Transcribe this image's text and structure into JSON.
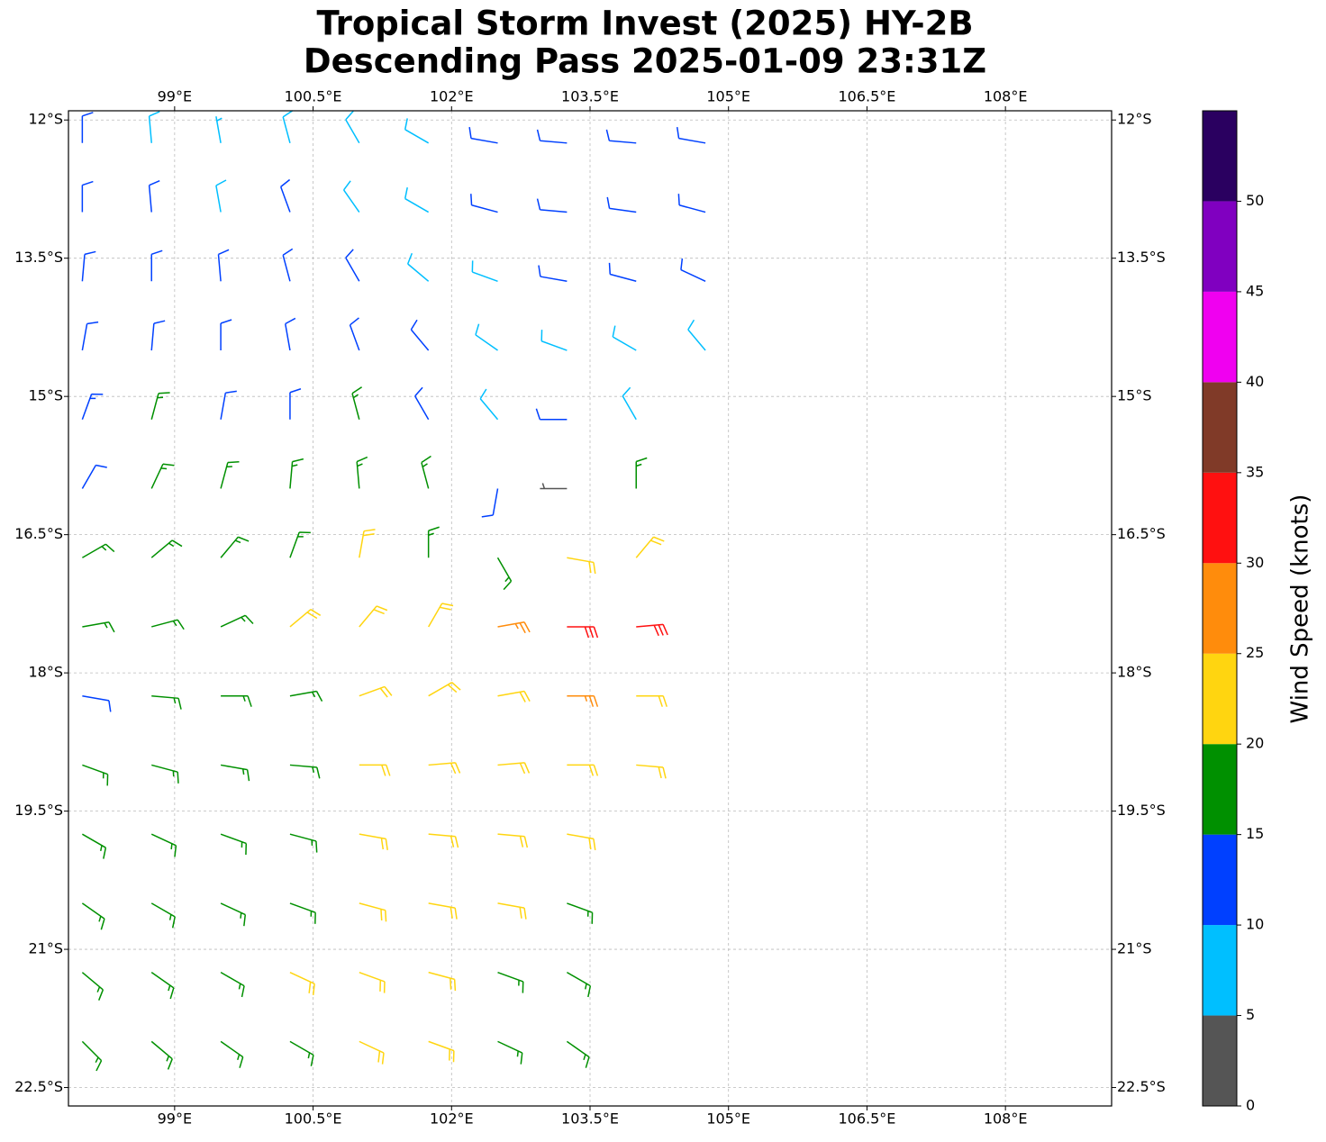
{
  "title": "Tropical Storm Invest (2025) HY-2B",
  "subtitle": "Descending Pass 2025-01-09 23:31Z",
  "map": {
    "xlim": [
      97.85,
      109.15
    ],
    "ylim": [
      -22.7,
      -11.9
    ],
    "grid": true,
    "xticks": [
      {
        "value": 99,
        "label": "99°E"
      },
      {
        "value": 100.5,
        "label": "100.5°E"
      },
      {
        "value": 102,
        "label": "102°E"
      },
      {
        "value": 103.5,
        "label": "103.5°E"
      },
      {
        "value": 105,
        "label": "105°E"
      },
      {
        "value": 106.5,
        "label": "106.5°E"
      },
      {
        "value": 108,
        "label": "108°E"
      }
    ],
    "yticks": [
      {
        "value": -12,
        "label": "12°S"
      },
      {
        "value": -13.5,
        "label": "13.5°S"
      },
      {
        "value": -15,
        "label": "15°S"
      },
      {
        "value": -16.5,
        "label": "16.5°S"
      },
      {
        "value": -18,
        "label": "18°S"
      },
      {
        "value": -19.5,
        "label": "19.5°S"
      },
      {
        "value": -21,
        "label": "21°S"
      },
      {
        "value": -22.5,
        "label": "22.5°S"
      }
    ]
  },
  "barbs": {
    "rows": [
      {
        "lat": -12.25,
        "lon": [
          98,
          98.75,
          99.5,
          100.25,
          101,
          101.75,
          102.5,
          103.25,
          104,
          104.75
        ],
        "speed": [
          12,
          8,
          7,
          8,
          8,
          8,
          12,
          12,
          12,
          12
        ],
        "dir": [
          0,
          355,
          350,
          345,
          330,
          300,
          280,
          275,
          275,
          280
        ]
      },
      {
        "lat": -13.0,
        "lon": [
          98,
          98.75,
          99.5,
          100.25,
          101,
          101.75,
          102.5,
          103.25,
          104,
          104.75
        ],
        "speed": [
          12,
          12,
          8,
          12,
          8,
          8,
          12,
          12,
          12,
          12
        ],
        "dir": [
          0,
          355,
          350,
          340,
          325,
          300,
          285,
          275,
          278,
          285
        ]
      },
      {
        "lat": -13.75,
        "lon": [
          98,
          98.75,
          99.5,
          100.25,
          101,
          101.75,
          102.5,
          103.25,
          104,
          104.75
        ],
        "speed": [
          12,
          12,
          12,
          12,
          12,
          8,
          8,
          12,
          12,
          12
        ],
        "dir": [
          5,
          0,
          355,
          345,
          330,
          310,
          290,
          280,
          285,
          295
        ]
      },
      {
        "lat": -14.5,
        "lon": [
          98,
          98.75,
          99.5,
          100.25,
          101,
          101.75,
          102.5,
          103.25,
          104,
          104.75
        ],
        "speed": [
          12,
          12,
          12,
          12,
          12,
          12,
          8,
          8,
          8,
          8
        ],
        "dir": [
          10,
          5,
          0,
          350,
          340,
          320,
          305,
          290,
          300,
          320
        ]
      },
      {
        "lat": -15.25,
        "lon": [
          98,
          98.75,
          99.5,
          100.25,
          101,
          101.75,
          102.5,
          103.25,
          104
        ],
        "speed": [
          14,
          16,
          12,
          12,
          16,
          12,
          8,
          12,
          8
        ],
        "dir": [
          20,
          15,
          10,
          0,
          345,
          330,
          320,
          270,
          330
        ]
      },
      {
        "lat": -16.0,
        "lon": [
          98,
          98.75,
          99.5,
          100.25,
          101,
          101.75,
          102.5,
          103.25,
          104
        ],
        "speed": [
          12,
          16,
          16,
          16,
          17,
          17,
          12,
          4,
          16
        ],
        "dir": [
          30,
          25,
          15,
          5,
          355,
          345,
          190,
          270,
          0
        ]
      },
      {
        "lat": -16.75,
        "lon": [
          98,
          98.75,
          99.5,
          100.25,
          101,
          101.75,
          102.5,
          103.25,
          104
        ],
        "speed": [
          17,
          17,
          16,
          17,
          22,
          17,
          17,
          22,
          22
        ],
        "dir": [
          60,
          50,
          40,
          20,
          10,
          0,
          150,
          100,
          40
        ]
      },
      {
        "lat": -17.5,
        "lon": [
          98,
          98.75,
          99.5,
          100.25,
          101,
          101.75,
          102.5,
          103.25,
          104
        ],
        "speed": [
          17,
          17,
          17,
          22,
          22,
          22,
          27,
          32,
          32
        ],
        "dir": [
          80,
          75,
          65,
          50,
          40,
          30,
          80,
          90,
          85
        ]
      },
      {
        "lat": -18.25,
        "lon": [
          98,
          98.75,
          99.5,
          100.25,
          101,
          101.75,
          102.5,
          103.25,
          104
        ],
        "speed": [
          12,
          17,
          17,
          17,
          22,
          22,
          22,
          27,
          22
        ],
        "dir": [
          100,
          95,
          90,
          80,
          70,
          60,
          80,
          90,
          90
        ]
      },
      {
        "lat": -19.0,
        "lon": [
          98,
          98.75,
          99.5,
          100.25,
          101,
          101.75,
          102.5,
          103.25,
          104
        ],
        "speed": [
          17,
          17,
          17,
          17,
          22,
          22,
          22,
          22,
          22
        ],
        "dir": [
          110,
          105,
          100,
          95,
          90,
          85,
          85,
          90,
          95
        ]
      },
      {
        "lat": -19.75,
        "lon": [
          98,
          98.75,
          99.5,
          100.25,
          101,
          101.75,
          102.5,
          103.25
        ],
        "speed": [
          17,
          17,
          17,
          17,
          22,
          22,
          22,
          22
        ],
        "dir": [
          120,
          115,
          110,
          105,
          100,
          95,
          95,
          100
        ]
      },
      {
        "lat": -20.5,
        "lon": [
          98,
          98.75,
          99.5,
          100.25,
          101,
          101.75,
          102.5,
          103.25
        ],
        "speed": [
          17,
          17,
          17,
          17,
          22,
          22,
          22,
          17
        ],
        "dir": [
          125,
          120,
          115,
          110,
          105,
          100,
          100,
          110
        ]
      },
      {
        "lat": -21.25,
        "lon": [
          98,
          98.75,
          99.5,
          100.25,
          101,
          101.75,
          102.5,
          103.25
        ],
        "speed": [
          17,
          17,
          17,
          22,
          22,
          22,
          17,
          17
        ],
        "dir": [
          130,
          125,
          120,
          115,
          110,
          105,
          110,
          120
        ]
      },
      {
        "lat": -22.0,
        "lon": [
          98,
          98.75,
          99.5,
          100.25,
          101,
          101.75,
          102.5,
          103.25
        ],
        "speed": [
          17,
          17,
          17,
          17,
          22,
          22,
          17,
          17
        ],
        "dir": [
          135,
          130,
          125,
          120,
          115,
          110,
          115,
          125
        ]
      }
    ]
  },
  "colorbar": {
    "label": "Wind Speed (knots)",
    "lim": [
      0,
      55
    ],
    "ticks": [
      0,
      5,
      10,
      15,
      20,
      25,
      30,
      35,
      40,
      45,
      50
    ],
    "bounds": [
      0,
      5,
      10,
      15,
      20,
      25,
      30,
      35,
      40,
      45,
      50,
      55
    ],
    "colors": [
      "#555555",
      "#00bfff",
      "#0040ff",
      "#009000",
      "#ffd510",
      "#ff8c0c",
      "#ff1010",
      "#803a28",
      "#f000f0",
      "#8000c0",
      "#2a0060"
    ]
  }
}
